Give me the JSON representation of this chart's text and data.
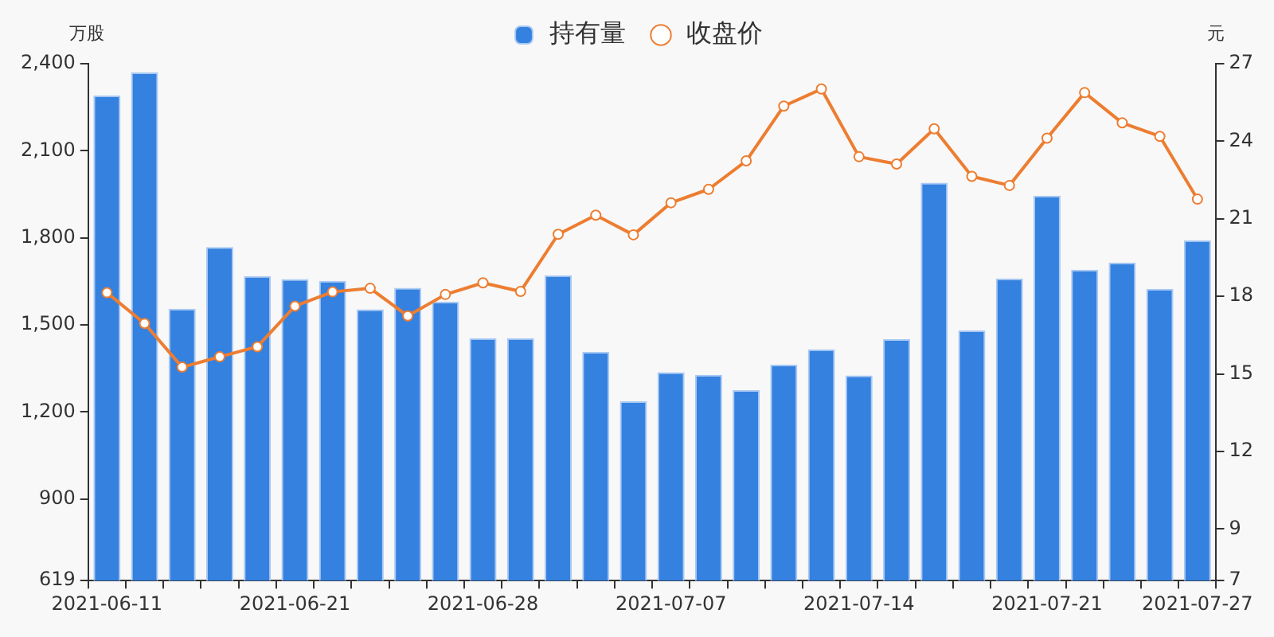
{
  "chart_data": {
    "type": "bar",
    "categories": [
      "2021-06-11",
      null,
      null,
      null,
      null,
      "2021-06-21",
      null,
      null,
      null,
      null,
      "2021-06-28",
      null,
      null,
      null,
      null,
      "2021-07-07",
      null,
      null,
      null,
      null,
      "2021-07-14",
      null,
      null,
      null,
      null,
      "2021-07-21",
      null,
      null,
      null,
      "2021-07-27"
    ],
    "series": [
      {
        "name": "持有量",
        "color": "#3481e0",
        "values": [
          2290,
          2370,
          1556,
          1768,
          1668,
          1658,
          1652,
          1554,
          1628,
          1580,
          1454,
          1454,
          1671,
          1407,
          1237,
          1337,
          1328,
          1275,
          1363,
          1416,
          1326,
          1451,
          1990,
          1481,
          1660,
          1945,
          1690,
          1715,
          1624,
          1792
        ]
      },
      {
        "name": "收盘价",
        "type": "line",
        "axis": "y2",
        "color": "#ed7d31",
        "values": [
          18.14,
          16.95,
          15.26,
          15.66,
          16.05,
          17.62,
          18.17,
          18.31,
          17.24,
          18.07,
          18.52,
          18.19,
          20.4,
          21.14,
          20.38,
          21.62,
          22.14,
          23.24,
          25.36,
          26.02,
          23.4,
          23.12,
          24.48,
          22.64,
          22.29,
          24.12,
          25.88,
          24.71,
          24.19,
          21.76
        ]
      }
    ],
    "ylabel": "万股",
    "y2label": "元",
    "ylim": [
      619,
      2400
    ],
    "yticks": [
      619,
      900,
      {
        "value": 1200,
        "label": "1,200"
      },
      {
        "value": 1500,
        "label": "1,500"
      },
      {
        "value": 1800,
        "label": "1,800"
      },
      {
        "value": 2100,
        "label": "2,100"
      },
      {
        "value": 2400,
        "label": "2,400"
      }
    ],
    "y2lim": [
      7,
      27
    ],
    "y2ticks": [
      7,
      9,
      12,
      15,
      18,
      21,
      24,
      27
    ],
    "grid": false,
    "legend": "top",
    "marker": "circle",
    "line_style": "solid"
  }
}
